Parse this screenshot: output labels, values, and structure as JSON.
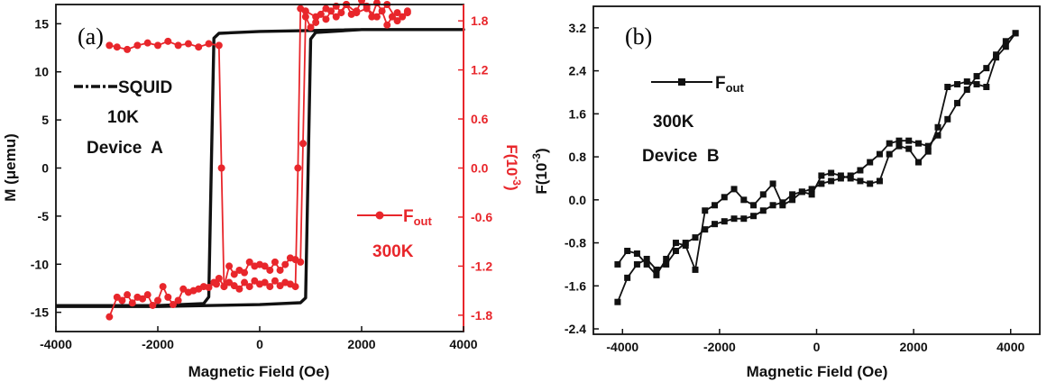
{
  "colors": {
    "black": "#111111",
    "red": "#e8262b"
  },
  "chart_data": [
    {
      "type": "line",
      "panel_label": "(a)",
      "xlabel": "Magnetic Field (Oe)",
      "ylabel": "M (μemu)",
      "y2label": "F(10-3)",
      "xlim": [
        -4000,
        4000
      ],
      "ylim": [
        -17,
        17
      ],
      "y2lim": [
        -2.0,
        2.0
      ],
      "xticks": [
        -4000,
        -2000,
        0,
        2000,
        4000
      ],
      "xtick_labels": [
        "-4000",
        "-2000",
        "0",
        "2000",
        "4000"
      ],
      "yticks": [
        15,
        10,
        5,
        0,
        -5,
        -10,
        -15
      ],
      "ytick_labels": [
        "15",
        "10",
        "5",
        "0",
        "-5",
        "-10",
        "-15"
      ],
      "y2ticks": [
        1.8,
        1.2,
        0.6,
        0.0,
        -0.6,
        -1.2,
        -1.8
      ],
      "y2tick_labels": [
        "1.8",
        "1.2",
        "0.6",
        "0.0",
        "-0.6",
        "-1.2",
        "-1.8"
      ],
      "annotations": [
        "10K",
        "Device  A",
        "300K"
      ],
      "legend": [
        {
          "name": "SQUID",
          "marker": "none"
        },
        {
          "name": "Fout",
          "marker": "circle"
        }
      ],
      "series": [
        {
          "name": "SQUID",
          "axis": "left",
          "color": "#111111",
          "marker": "none",
          "x": [
            -4000,
            -2000,
            -1100,
            -1000,
            -950,
            -900,
            -800,
            0,
            2000,
            4000,
            4000,
            2000,
            1100,
            1000,
            950,
            900,
            800,
            0,
            -2000,
            -4000
          ],
          "y": [
            -14.3,
            -14.3,
            -14.1,
            -13.4,
            0,
            13.5,
            14.0,
            14.2,
            14.4,
            14.4,
            14.4,
            14.4,
            14.1,
            13.4,
            0,
            -13.5,
            -14.0,
            -14.2,
            -14.4,
            -14.4
          ]
        },
        {
          "name": "Fout",
          "axis": "right",
          "color": "#e8262b",
          "marker": "circle",
          "x": [
            -2950,
            -2800,
            -2700,
            -2600,
            -2500,
            -2400,
            -2300,
            -2200,
            -2100,
            -2000,
            -1900,
            -1800,
            -1700,
            -1600,
            -1500,
            -1400,
            -1300,
            -1200,
            -1100,
            -1000,
            -900,
            -850,
            -800,
            -700,
            -600,
            -500,
            -400,
            -300,
            -200,
            -100,
            0,
            100,
            200,
            300,
            400,
            500,
            600,
            700,
            800,
            850,
            900,
            1000,
            1100,
            1200,
            1300,
            1400,
            1500,
            1600,
            1700,
            1800,
            1900,
            2000,
            2100,
            2200,
            2300,
            2400,
            2500,
            2600,
            2700,
            2800,
            2900
          ],
          "y": [
            -1.82,
            -1.58,
            -1.62,
            -1.55,
            -1.65,
            -1.58,
            -1.6,
            -1.55,
            -1.68,
            -1.62,
            -1.45,
            -1.58,
            -1.67,
            -1.62,
            -1.48,
            -1.52,
            -1.5,
            -1.48,
            -1.45,
            -1.46,
            -1.4,
            -1.42,
            -1.35,
            -1.45,
            -1.2,
            -1.3,
            -1.25,
            -1.28,
            -1.15,
            -1.2,
            -1.18,
            -1.2,
            -1.25,
            -1.15,
            -1.25,
            -1.18,
            -1.1,
            -1.12,
            -1.15,
            0.3,
            1.85,
            1.72,
            1.78,
            1.88,
            1.82,
            1.92,
            1.98,
            1.9,
            2.0,
            1.88,
            1.92,
            2.05,
            1.98,
            1.85,
            2.02,
            1.92,
            1.75,
            1.85,
            1.9,
            1.85,
            1.92
          ],
          "x_return": [
            2900,
            2700,
            2500,
            2300,
            2100,
            1900,
            1700,
            1500,
            1300,
            1100,
            900,
            800,
            750,
            700,
            600,
            500,
            400,
            300,
            200,
            100,
            0,
            -100,
            -200,
            -300,
            -400,
            -500,
            -600,
            -700,
            -750,
            -800,
            -1000,
            -1200,
            -1400,
            -1600,
            -1800,
            -2000,
            -2200,
            -2400,
            -2600,
            -2800,
            -2950
          ],
          "y_return": [
            1.9,
            1.8,
            2.0,
            1.85,
            1.95,
            1.9,
            2.0,
            1.85,
            1.95,
            1.85,
            1.92,
            1.95,
            0.0,
            -1.45,
            -1.42,
            -1.4,
            -1.44,
            -1.38,
            -1.45,
            -1.4,
            -1.42,
            -1.38,
            -1.45,
            -1.4,
            -1.48,
            -1.44,
            -1.4,
            -1.45,
            0.0,
            1.5,
            1.52,
            1.48,
            1.52,
            1.5,
            1.55,
            1.5,
            1.53,
            1.5,
            1.45,
            1.48,
            1.5
          ]
        }
      ]
    },
    {
      "type": "line",
      "panel_label": "(b)",
      "xlabel": "Magnetic Field (Oe)",
      "ylabel": "F(10-3)",
      "xlim": [
        -4600,
        4600
      ],
      "ylim": [
        -2.5,
        3.6
      ],
      "xticks": [
        -4000,
        -2000,
        0,
        2000,
        4000
      ],
      "xtick_labels": [
        "-4000",
        "-2000",
        "0",
        "2000",
        "4000"
      ],
      "yticks": [
        3.2,
        2.4,
        1.6,
        0.8,
        0.0,
        -0.8,
        -1.6,
        -2.4
      ],
      "ytick_labels": [
        "3.2",
        "2.4",
        "1.6",
        "0.8",
        "0.0",
        "-0.8",
        "-1.6",
        "-2.4"
      ],
      "annotations": [
        "300K",
        "Device  B"
      ],
      "legend": [
        {
          "name": "Fout",
          "marker": "square"
        }
      ],
      "series": [
        {
          "name": "Fout",
          "color": "#111111",
          "marker": "square",
          "x": [
            -4100,
            -3900,
            -3700,
            -3500,
            -3300,
            -3100,
            -2900,
            -2700,
            -2500,
            -2300,
            -2100,
            -1900,
            -1700,
            -1500,
            -1300,
            -1100,
            -900,
            -700,
            -500,
            -300,
            -100,
            100,
            300,
            500,
            700,
            900,
            1100,
            1300,
            1500,
            1700,
            1900,
            2100,
            2300,
            2500,
            2700,
            2900,
            3100,
            3300,
            3500,
            3700,
            3900,
            4100
          ],
          "y": [
            -1.9,
            -1.45,
            -1.2,
            -1.1,
            -1.3,
            -1.2,
            -0.95,
            -0.8,
            -0.7,
            -0.55,
            -0.45,
            -0.4,
            -0.35,
            -0.35,
            -0.3,
            -0.2,
            -0.1,
            -0.05,
            0.1,
            0.15,
            0.2,
            0.3,
            0.35,
            0.4,
            0.45,
            0.55,
            0.7,
            0.85,
            1.05,
            1.1,
            1.1,
            1.05,
            1.0,
            1.2,
            1.5,
            1.8,
            2.05,
            2.3,
            2.45,
            2.7,
            2.95,
            3.1
          ],
          "x_return": [
            4100,
            3900,
            3700,
            3500,
            3300,
            3100,
            2900,
            2700,
            2500,
            2300,
            2100,
            1900,
            1700,
            1500,
            1300,
            1100,
            900,
            700,
            500,
            300,
            100,
            -100,
            -300,
            -500,
            -700,
            -900,
            -1100,
            -1300,
            -1500,
            -1700,
            -1900,
            -2100,
            -2300,
            -2500,
            -2700,
            -2900,
            -3100,
            -3300,
            -3500,
            -3700,
            -3900,
            -4100
          ],
          "y_return": [
            3.1,
            2.85,
            2.65,
            2.1,
            2.15,
            2.2,
            2.15,
            2.1,
            1.35,
            0.9,
            0.7,
            0.95,
            1.0,
            0.85,
            0.35,
            0.3,
            0.35,
            0.4,
            0.45,
            0.5,
            0.45,
            0.1,
            0.15,
            0.0,
            -0.1,
            0.3,
            0.1,
            -0.1,
            0.0,
            0.2,
            0.05,
            -0.1,
            -0.2,
            -1.3,
            -0.85,
            -0.8,
            -1.1,
            -1.4,
            -1.2,
            -1.0,
            -0.95,
            -1.2
          ]
        }
      ]
    }
  ]
}
